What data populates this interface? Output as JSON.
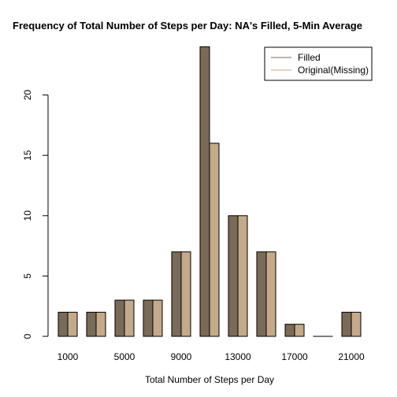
{
  "chart_data": {
    "type": "bar",
    "title": "Frequency of Total Number of Steps per Day: NA's Filled, 5-Min Average",
    "xlabel": "Total Number of Steps per Day",
    "ylabel": "",
    "ylim": [
      0,
      25
    ],
    "y_ticks": [
      0,
      5,
      10,
      15,
      20
    ],
    "x_tick_labels": [
      "1000",
      "5000",
      "9000",
      "13000",
      "17000",
      "21000"
    ],
    "x_ticks_every_other_group": true,
    "series": [
      {
        "name": "Filled",
        "color": "#7a6a58",
        "values": [
          2,
          2,
          3,
          3,
          7,
          24,
          10,
          7,
          1,
          0,
          2
        ]
      },
      {
        "name": "Original(Missing)",
        "color": "#c4aa8a",
        "values": [
          2,
          2,
          3,
          3,
          7,
          16,
          10,
          7,
          1,
          0,
          2
        ]
      }
    ],
    "legend_position": "top-right",
    "grid": false
  }
}
